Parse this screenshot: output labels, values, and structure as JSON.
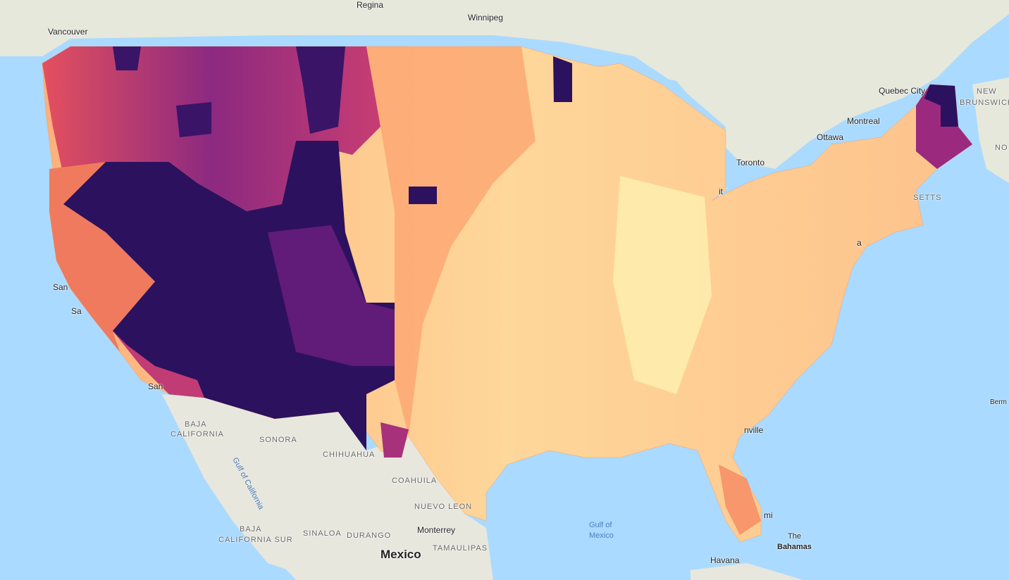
{
  "map": {
    "colors": {
      "water": "#aadaff",
      "land": "#ece9e0",
      "scale_low": "#fcfdbf",
      "scale_mid_low": "#fdbd85",
      "scale_mid": "#f2735c",
      "scale_mid_high": "#b5367a",
      "scale_high": "#2c115f"
    },
    "labels": {
      "regina": "Regina",
      "winnipeg": "Winnipeg",
      "vancouver": "Vancouver",
      "quebec_city": "Quebec City",
      "new_brunswick_1": "NEW",
      "new_brunswick_2": "BRUNSWICK",
      "montreal": "Montreal",
      "ottawa": "Ottawa",
      "toronto": "Toronto",
      "nova_scotia": "NO",
      "massachusetts": "SETTS",
      "detroit": "it",
      "san_francisco": "San",
      "sacramento": "Sa",
      "san_diego": "San",
      "baja_california_1": "BAJA",
      "baja_california_2": "CALIFORNIA",
      "sonora": "SONORA",
      "chihuahua": "CHIHUAHUA",
      "coahuila": "COAHUILA",
      "nuevo_leon": "NUEVO LEON",
      "monterrey": "Monterrey",
      "gulf_of_california": "Gulf of California",
      "baja_california_sur_1": "BAJA",
      "baja_california_sur_2": "CALIFORNIA SUR",
      "sinaloa": "SINALOA",
      "durango": "DURANGO",
      "tamaulipas": "TAMAULIPAS",
      "mexico": "Mexico",
      "gulf_of_mexico_1": "Gulf of",
      "gulf_of_mexico_2": "Mexico",
      "the_bahamas_1": "The",
      "the_bahamas_2": "Bahamas",
      "havana": "Havana",
      "bermuda": "Berm",
      "jacksonville": "nville",
      "miami": "mi",
      "ma": "a"
    }
  }
}
